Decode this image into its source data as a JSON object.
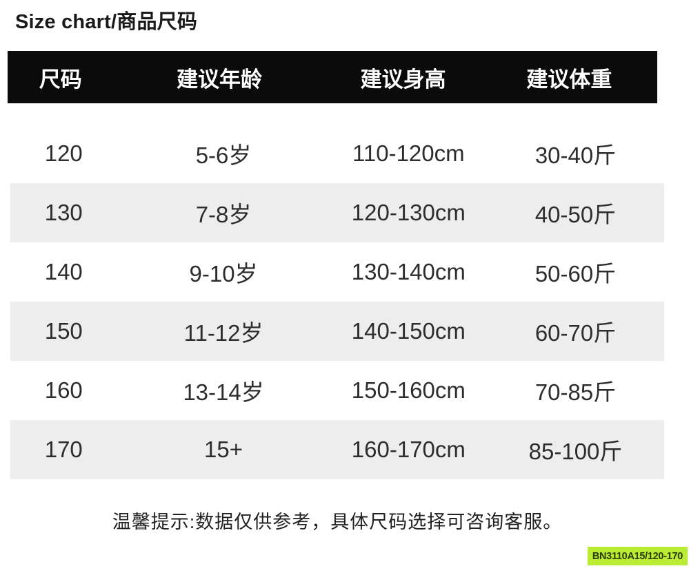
{
  "page": {
    "title_latin": "Size chart",
    "title_separator": "/",
    "title_cn": "商品尺码"
  },
  "table": {
    "headers": [
      "尺码",
      "建议年龄",
      "建议身高",
      "建议体重"
    ],
    "rows": [
      [
        "120",
        "5-6岁",
        "110-120cm",
        "30-40斤"
      ],
      [
        "130",
        "7-8岁",
        "120-130cm",
        "40-50斤"
      ],
      [
        "140",
        "9-10岁",
        "130-140cm",
        "50-60斤"
      ],
      [
        "150",
        "11-12岁",
        "140-150cm",
        "60-70斤"
      ],
      [
        "160",
        "13-14岁",
        "150-160cm",
        "70-85斤"
      ],
      [
        "170",
        "15+",
        "160-170cm",
        "85-100斤"
      ]
    ]
  },
  "footer": {
    "note": "温馨提示:数据仅供参考，具体尺码选择可咨询客服。"
  },
  "sku_label": {
    "text": "BN3110A15/120-170"
  },
  "colors": {
    "header_bg": "#0b0b0b",
    "header_text": "#ffffff",
    "row_alt_bg": "#ededed",
    "body_text": "#2d2d2d",
    "sku_bg": "#b9ec33",
    "sku_text": "#2a3b00"
  }
}
